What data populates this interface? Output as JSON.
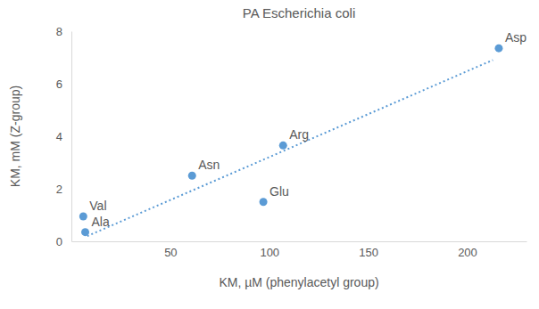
{
  "chart_data": {
    "type": "scatter",
    "title": "PA Escherichia coli",
    "x_label": "KM, µM (phenylacetyl group)",
    "y_label": "KM, mM (Z-group)",
    "xlim": [
      0,
      230
    ],
    "ylim": [
      0,
      8
    ],
    "xticks": [
      50,
      100,
      150,
      200
    ],
    "yticks": [
      0,
      2,
      4,
      6,
      8
    ],
    "grid": false,
    "series": [
      {
        "type": "scatter",
        "color": "#5b9bd5",
        "marker": "circle",
        "labels": [
          "Val",
          "Ala",
          "Asn",
          "Glu",
          "Arg",
          "Asp"
        ],
        "x": [
          6,
          7,
          61,
          97,
          107,
          216
        ],
        "values": [
          0.95,
          0.35,
          2.5,
          1.5,
          3.65,
          7.35
        ]
      },
      {
        "type": "line",
        "color": "#5b9bd5",
        "line_style": "dotted",
        "x": [
          8,
          213
        ],
        "values": [
          0.2,
          6.9
        ]
      }
    ]
  }
}
